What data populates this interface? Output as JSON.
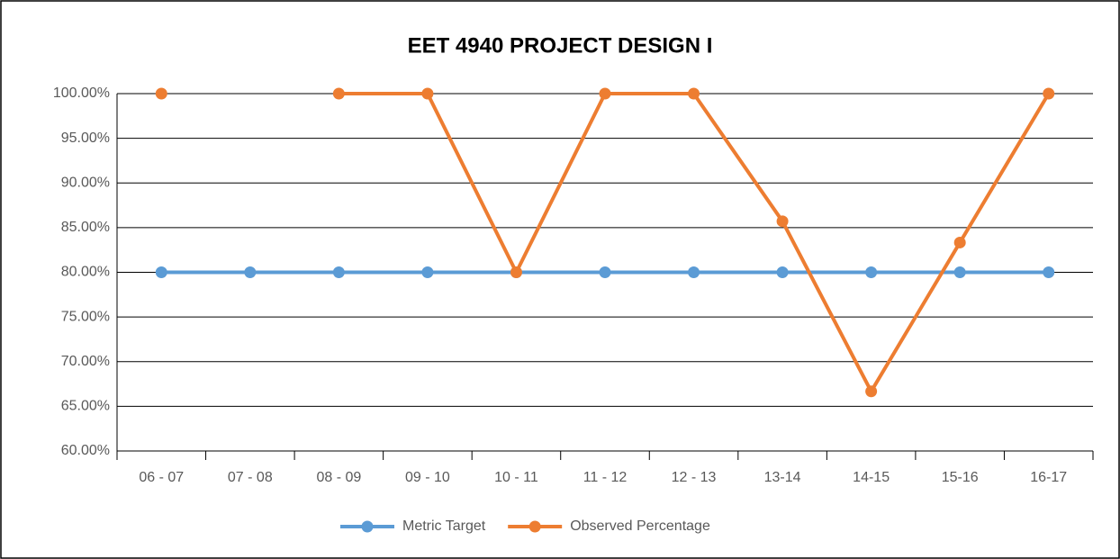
{
  "chart_data": {
    "type": "line",
    "title": "EET 4940 PROJECT DESIGN I",
    "categories": [
      "06 - 07",
      "07 - 08",
      "08 - 09",
      "09 - 10",
      "10 - 11",
      "11 - 12",
      "12 - 13",
      "13-14",
      "14-15",
      "15-16",
      "16-17"
    ],
    "series": [
      {
        "name": "Metric Target",
        "color": "#5b9bd5",
        "values": [
          80,
          80,
          80,
          80,
          80,
          80,
          80,
          80,
          80,
          80,
          80
        ]
      },
      {
        "name": "Observed Percentage",
        "color": "#ed7d31",
        "values": [
          100,
          null,
          100,
          100,
          80,
          100,
          100,
          85.71,
          66.67,
          83.33,
          100
        ]
      }
    ],
    "ylim": [
      60,
      100
    ],
    "yticks": [
      {
        "value": 60,
        "label": "60.00%"
      },
      {
        "value": 65,
        "label": "65.00%"
      },
      {
        "value": 70,
        "label": "70.00%"
      },
      {
        "value": 75,
        "label": "75.00%"
      },
      {
        "value": 80,
        "label": "80.00%"
      },
      {
        "value": 85,
        "label": "85.00%"
      },
      {
        "value": 90,
        "label": "90.00%"
      },
      {
        "value": 95,
        "label": "95.00%"
      },
      {
        "value": 100,
        "label": "100.00%"
      }
    ],
    "grid": true,
    "legend": "bottom"
  }
}
